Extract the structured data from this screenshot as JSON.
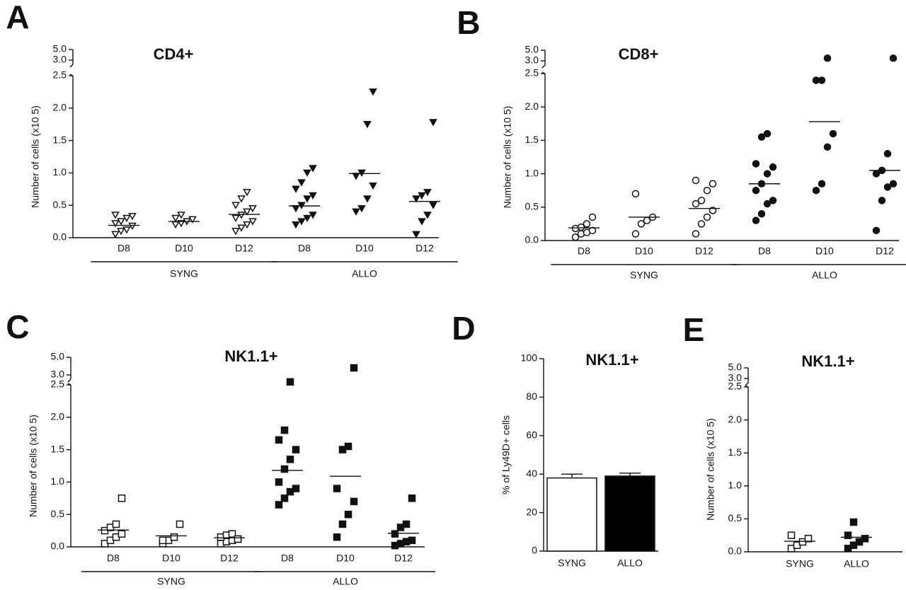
{
  "chart_data": [
    {
      "type": "dot",
      "panel": "A",
      "title": "CD4+",
      "y_label": "Number of cells (x10 5)",
      "marker": "triangle-down",
      "categories": [
        "D8",
        "D10",
        "D12",
        "D8",
        "D10",
        "D12"
      ],
      "groups": [
        "SYNG",
        "ALLO"
      ],
      "filled": [
        false,
        false,
        false,
        true,
        true,
        true
      ],
      "values": [
        [
          0.05,
          0.1,
          0.12,
          0.18,
          0.22,
          0.25,
          0.3,
          0.33,
          0.35
        ],
        [
          0.2,
          0.22,
          0.25,
          0.28,
          0.3,
          0.35
        ],
        [
          0.1,
          0.15,
          0.2,
          0.25,
          0.3,
          0.35,
          0.4,
          0.45,
          0.5,
          0.6,
          0.7
        ],
        [
          0.2,
          0.25,
          0.3,
          0.35,
          0.45,
          0.5,
          0.6,
          0.65,
          0.75,
          0.85,
          1.0,
          1.07
        ],
        [
          0.4,
          0.45,
          0.6,
          0.8,
          0.95,
          1.0,
          1.75,
          2.25
        ],
        [
          0.05,
          0.25,
          0.35,
          0.5,
          0.6,
          0.65,
          0.7,
          1.78
        ]
      ],
      "means": [
        0.19,
        0.25,
        0.36,
        0.49,
        0.99,
        0.56
      ],
      "ylim": [
        0,
        5
      ],
      "ybreak": [
        2.5,
        3
      ],
      "yticks": [
        {
          "value": 0,
          "label": "0.0"
        },
        {
          "value": 0.5,
          "label": "0.5"
        },
        {
          "value": 1,
          "label": "1.0"
        },
        {
          "value": 1.5,
          "label": "1.5"
        },
        {
          "value": 2,
          "label": "2.0"
        },
        {
          "value": 2.5,
          "label": "2.5"
        },
        {
          "value": 3,
          "label": "3.0"
        },
        {
          "value": 5,
          "label": "5.0"
        }
      ]
    },
    {
      "type": "dot",
      "panel": "B",
      "title": "CD8+",
      "y_label": "Number of cells (x10 5)",
      "marker": "circle",
      "categories": [
        "D8",
        "D10",
        "D12",
        "D8",
        "D10",
        "D12"
      ],
      "groups": [
        "SYNG",
        "ALLO"
      ],
      "filled": [
        false,
        false,
        false,
        true,
        true,
        true
      ],
      "values": [
        [
          0.05,
          0.1,
          0.12,
          0.15,
          0.18,
          0.2,
          0.25,
          0.35
        ],
        [
          0.1,
          0.25,
          0.3,
          0.35,
          0.7
        ],
        [
          0.1,
          0.25,
          0.35,
          0.45,
          0.55,
          0.6,
          0.75,
          0.85,
          0.9
        ],
        [
          0.3,
          0.4,
          0.55,
          0.6,
          0.75,
          0.85,
          1.0,
          1.1,
          1.15,
          1.55,
          1.6
        ],
        [
          0.75,
          0.85,
          1.4,
          1.6,
          2.4,
          2.4,
          3.5
        ],
        [
          0.15,
          0.6,
          0.8,
          0.85,
          1.0,
          1.05,
          1.3,
          3.5
        ]
      ],
      "means": [
        0.19,
        0.35,
        0.48,
        0.85,
        1.78,
        1.05
      ],
      "ylim": [
        0,
        5
      ],
      "ybreak": [
        2.5,
        3
      ],
      "yticks": [
        {
          "value": 0,
          "label": "0.0"
        },
        {
          "value": 0.5,
          "label": "0.5"
        },
        {
          "value": 1,
          "label": "1.0"
        },
        {
          "value": 1.5,
          "label": "1.5"
        },
        {
          "value": 2,
          "label": "2.0"
        },
        {
          "value": 2.5,
          "label": "2.5"
        },
        {
          "value": 3,
          "label": "3.0"
        },
        {
          "value": 5,
          "label": "5.0"
        }
      ]
    },
    {
      "type": "dot",
      "panel": "C",
      "title": "NK1.1+",
      "y_label": "Number of cells (x10 5)",
      "marker": "square",
      "categories": [
        "D8",
        "D10",
        "D12",
        "D8",
        "D10",
        "D12"
      ],
      "groups": [
        "SYNG",
        "ALLO"
      ],
      "filled": [
        false,
        false,
        false,
        true,
        true,
        true
      ],
      "values": [
        [
          0.05,
          0.1,
          0.15,
          0.2,
          0.25,
          0.3,
          0.35,
          0.75
        ],
        [
          0.05,
          0.1,
          0.15,
          0.35,
          0.1
        ],
        [
          0.05,
          0.08,
          0.1,
          0.12,
          0.15,
          0.18,
          0.2,
          0.12
        ],
        [
          0.65,
          0.75,
          0.85,
          0.9,
          1.0,
          1.2,
          1.35,
          1.5,
          1.65,
          1.8,
          2.65
        ],
        [
          0.15,
          0.35,
          0.5,
          0.7,
          0.9,
          1.5,
          1.55,
          3.8
        ],
        [
          0.02,
          0.05,
          0.08,
          0.1,
          0.2,
          0.3,
          0.35,
          0.75
        ]
      ],
      "means": [
        0.26,
        0.17,
        0.14,
        1.18,
        1.09,
        0.21
      ],
      "ylim": [
        0,
        5
      ],
      "ybreak": [
        2.5,
        3
      ],
      "yticks": [
        {
          "value": 0,
          "label": "0.0"
        },
        {
          "value": 0.5,
          "label": "0.5"
        },
        {
          "value": 1,
          "label": "1.0"
        },
        {
          "value": 1.5,
          "label": "1.5"
        },
        {
          "value": 2,
          "label": "2.0"
        },
        {
          "value": 2.5,
          "label": "2.5"
        },
        {
          "value": 3,
          "label": "3.0"
        },
        {
          "value": 5,
          "label": "5.0"
        }
      ]
    },
    {
      "type": "bar",
      "panel": "D",
      "title": "NK1.1+",
      "y_label": "% of Ly49D+ cells",
      "categories": [
        "SYNG",
        "ALLO"
      ],
      "values": [
        38,
        39
      ],
      "errors": [
        2,
        1.5
      ],
      "colors": [
        "#ffffff",
        "#000000"
      ],
      "ylim": [
        0,
        100
      ],
      "yticks": [
        0,
        20,
        40,
        60,
        80,
        100
      ]
    },
    {
      "type": "dot",
      "panel": "E",
      "title": "NK1.1+",
      "y_label": "Number of cells (x10 5)",
      "marker": "square",
      "categories": [
        "SYNG",
        "ALLO"
      ],
      "filled": [
        false,
        true
      ],
      "values": [
        [
          0.05,
          0.1,
          0.15,
          0.2,
          0.25
        ],
        [
          0.05,
          0.1,
          0.15,
          0.2,
          0.25,
          0.45
        ]
      ],
      "means": [
        0.16,
        0.22
      ],
      "ylim": [
        0,
        5
      ],
      "ybreak": [
        2.5,
        3
      ],
      "yticks": [
        {
          "value": 0,
          "label": "0.0"
        },
        {
          "value": 0.5,
          "label": "0.5"
        },
        {
          "value": 1,
          "label": "1.0"
        },
        {
          "value": 1.5,
          "label": "1.5"
        },
        {
          "value": 2,
          "label": "2.0"
        },
        {
          "value": 2.5,
          "label": "2.5"
        },
        {
          "value": 3,
          "label": "3.0"
        },
        {
          "value": 5,
          "label": "5.0"
        }
      ]
    }
  ]
}
